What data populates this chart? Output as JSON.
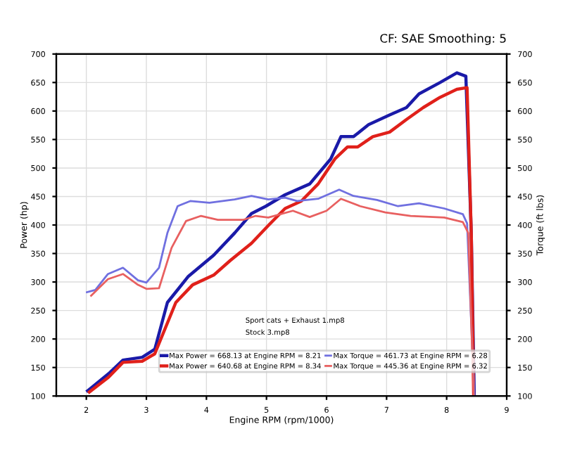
{
  "chart_data": {
    "type": "line",
    "title": "CF: SAE Smoothing: 5",
    "xlabel": "Engine RPM (rpm/1000)",
    "ylabel": "Power (hp)",
    "y2label": "Torque (ft lbs)",
    "xlim": [
      1.5,
      9
    ],
    "xticks": [
      2,
      3,
      4,
      5,
      6,
      7,
      8,
      9
    ],
    "ylim": [
      100,
      700
    ],
    "yticks": [
      100,
      150,
      200,
      250,
      300,
      350,
      400,
      450,
      500,
      550,
      600,
      650,
      700
    ],
    "y2lim": [
      100,
      700
    ],
    "y2ticks": [
      100,
      150,
      200,
      250,
      300,
      350,
      400,
      450,
      500,
      550,
      600,
      650,
      700
    ],
    "grid": true,
    "legend": "bottom",
    "annotations": [
      "Sport cats + Exhaust 1.mp8",
      "Stock 3.mp8"
    ],
    "series": [
      {
        "name": "Max Power = 668.13 at Engine RPM = 8.21",
        "color": "#1a1aa8",
        "x": [
          2.02,
          2.37,
          2.61,
          2.93,
          3.14,
          3.35,
          3.7,
          4.12,
          4.47,
          4.75,
          4.99,
          5.31,
          5.72,
          6.07,
          6.24,
          6.45,
          6.7,
          7.05,
          7.33,
          7.54,
          7.89,
          8.17,
          8.32,
          8.41,
          8.46
        ],
        "values": [
          109,
          139,
          163,
          168,
          182,
          264,
          310,
          347,
          386,
          420,
          433,
          453,
          472,
          516,
          555,
          555,
          576,
          593,
          606,
          630,
          650,
          667,
          661,
          386,
          100
        ]
      },
      {
        "name": "Max Power = 640.68 at Engine RPM = 8.34",
        "color": "#e0201a",
        "x": [
          2.05,
          2.37,
          2.61,
          2.93,
          3.14,
          3.49,
          3.77,
          4.12,
          4.4,
          4.75,
          5.03,
          5.31,
          5.58,
          5.86,
          6.14,
          6.35,
          6.52,
          6.77,
          7.05,
          7.33,
          7.61,
          7.89,
          8.17,
          8.34,
          8.41,
          8.45
        ],
        "values": [
          107,
          133,
          159,
          161,
          174,
          264,
          295,
          312,
          338,
          368,
          399,
          429,
          442,
          472,
          516,
          537,
          537,
          555,
          563,
          585,
          606,
          624,
          638,
          641,
          386,
          100
        ]
      },
      {
        "name": "Max Torque = 461.73 at Engine RPM = 6.28",
        "color": "#7070e0",
        "axis": "y2",
        "x": [
          2.01,
          2.15,
          2.36,
          2.61,
          2.86,
          3.0,
          3.21,
          3.35,
          3.52,
          3.73,
          4.05,
          4.47,
          4.75,
          5.03,
          5.31,
          5.51,
          5.86,
          6.21,
          6.45,
          6.84,
          7.19,
          7.54,
          7.96,
          8.27,
          8.34,
          8.46
        ],
        "values": [
          282,
          286,
          314,
          325,
          303,
          299,
          325,
          386,
          433,
          442,
          439,
          445,
          451,
          445,
          448,
          442,
          446,
          462,
          451,
          444,
          433,
          438,
          429,
          419,
          403,
          100
        ]
      },
      {
        "name": "Max Torque = 445.36 at Engine RPM = 6.32",
        "color": "#e86060",
        "axis": "y2",
        "x": [
          2.08,
          2.36,
          2.61,
          2.86,
          3.0,
          3.21,
          3.42,
          3.66,
          3.91,
          4.19,
          4.61,
          4.82,
          5.03,
          5.44,
          5.72,
          6.0,
          6.24,
          6.56,
          6.98,
          7.4,
          7.96,
          8.27,
          8.36,
          8.45
        ],
        "values": [
          276,
          305,
          314,
          295,
          288,
          289,
          360,
          407,
          416,
          409,
          409,
          416,
          413,
          425,
          414,
          425,
          446,
          433,
          422,
          416,
          413,
          405,
          386,
          100
        ]
      }
    ]
  }
}
